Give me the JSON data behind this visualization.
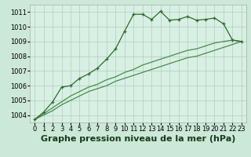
{
  "x": [
    0,
    1,
    2,
    3,
    4,
    5,
    6,
    7,
    8,
    9,
    10,
    11,
    12,
    13,
    14,
    15,
    16,
    17,
    18,
    19,
    20,
    21,
    22,
    23
  ],
  "line1": [
    1003.7,
    1004.2,
    1004.9,
    1005.9,
    1006.0,
    1006.5,
    1006.8,
    1007.2,
    1007.8,
    1008.5,
    1009.7,
    1010.85,
    1010.85,
    1010.5,
    1011.05,
    1010.45,
    1010.5,
    1010.7,
    1010.45,
    1010.5,
    1010.6,
    1010.2,
    1009.1,
    1009.0
  ],
  "line2": [
    1003.7,
    1004.1,
    1004.5,
    1004.9,
    1005.3,
    1005.6,
    1005.9,
    1006.1,
    1006.4,
    1006.6,
    1006.9,
    1007.1,
    1007.4,
    1007.6,
    1007.8,
    1008.0,
    1008.2,
    1008.4,
    1008.5,
    1008.7,
    1008.9,
    1009.0,
    1009.1,
    1009.0
  ],
  "line3": [
    1003.7,
    1004.0,
    1004.3,
    1004.7,
    1005.0,
    1005.3,
    1005.6,
    1005.8,
    1006.0,
    1006.3,
    1006.5,
    1006.7,
    1006.9,
    1007.1,
    1007.3,
    1007.5,
    1007.7,
    1007.9,
    1008.0,
    1008.2,
    1008.4,
    1008.6,
    1008.8,
    1009.0
  ],
  "line_color": "#2d6a2d",
  "line_color2": "#4a8a4a",
  "bg_color": "#cce8d8",
  "plot_bg": "#d8f0e4",
  "grid_color": "#b0ccbc",
  "border_color": "#aaaaaa",
  "title": "Graphe pression niveau de la mer (hPa)",
  "ylim": [
    1003.5,
    1011.5
  ],
  "yticks": [
    1004,
    1005,
    1006,
    1007,
    1008,
    1009,
    1010,
    1011
  ],
  "xlim": [
    -0.5,
    23.5
  ],
  "title_fontsize": 8,
  "tick_fontsize": 6
}
